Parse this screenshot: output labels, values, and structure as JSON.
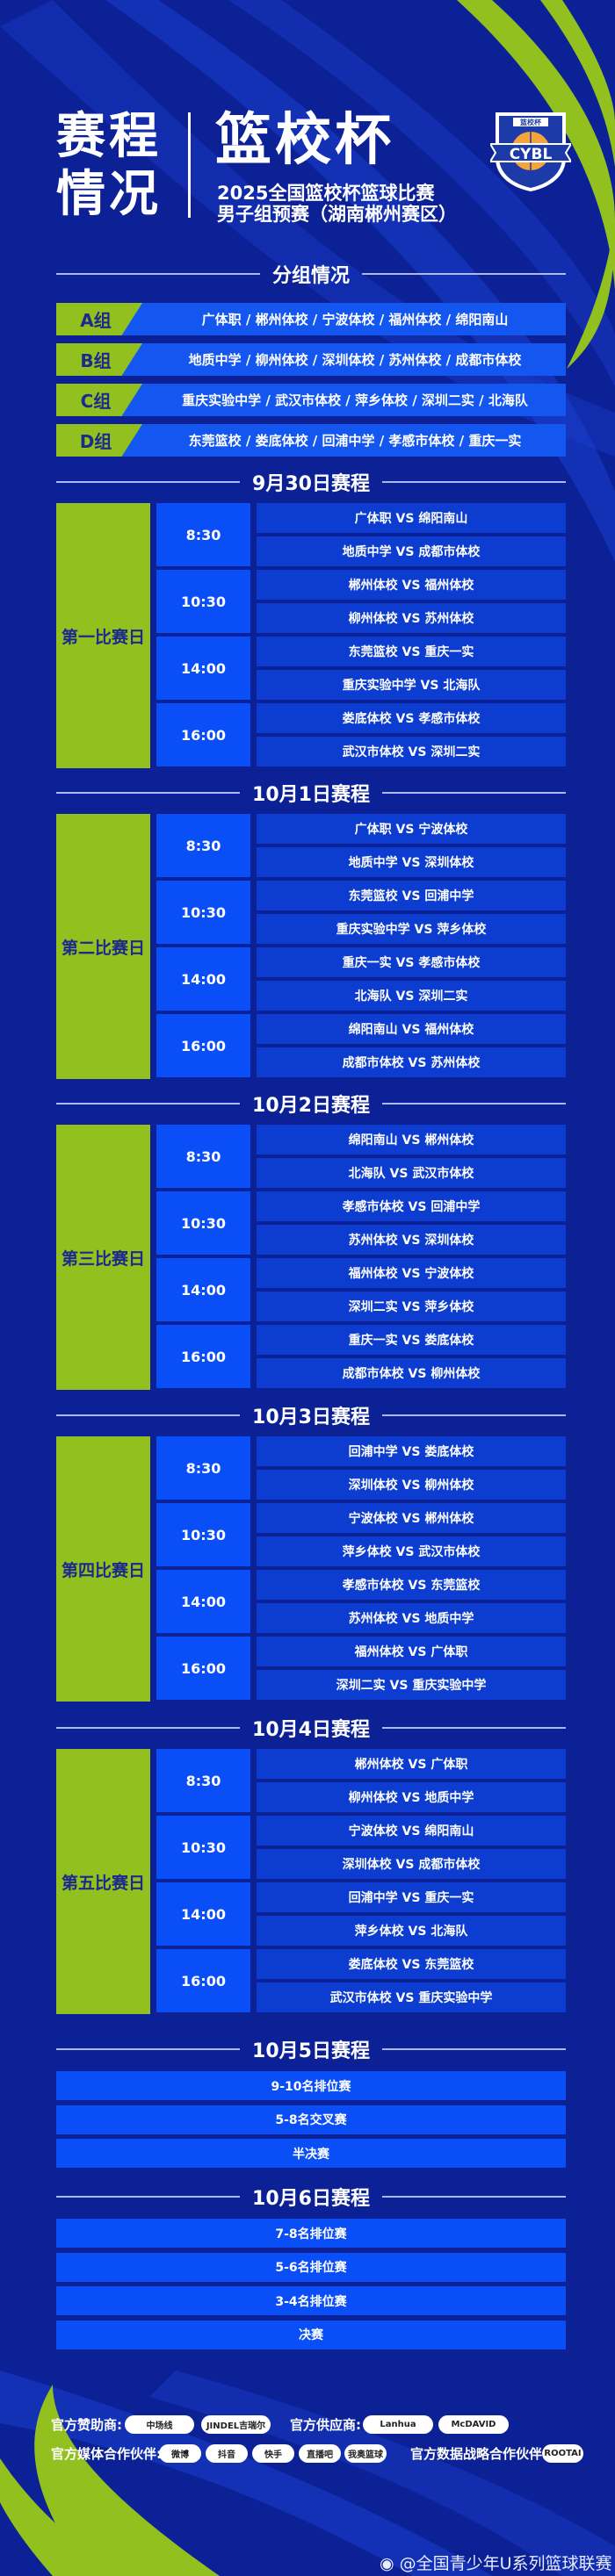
{
  "header": {
    "title_line1": "赛程",
    "title_line2": "情况",
    "cup_name": "篮校杯",
    "subtitle_line1": "2025全国篮校杯篮球比赛",
    "subtitle_line2": "男子组预赛（湖南郴州赛区）",
    "logo_top": "篮校杯",
    "logo_text": "CYBL"
  },
  "groups_section": {
    "title": "分组情况",
    "groups": [
      {
        "label": "A组",
        "teams": "广体职 / 郴州体校 / 宁波体校 / 福州体校 / 绵阳南山"
      },
      {
        "label": "B组",
        "teams": "地质中学 / 柳州体校 / 深圳体校 / 苏州体校 / 成都市体校"
      },
      {
        "label": "C组",
        "teams": "重庆实验中学 / 武汉市体校 / 萍乡体校 / 深圳二实 / 北海队"
      },
      {
        "label": "D组",
        "teams": "东莞篮校 / 娄底体校 / 回浦中学 / 孝感市体校 / 重庆一实"
      }
    ]
  },
  "schedule_days": [
    {
      "heading": "9月30日赛程",
      "day_label": "第一比赛日",
      "slots": [
        {
          "time": "8:30",
          "matches": [
            "广体职 VS 绵阳南山",
            "地质中学 VS 成都市体校"
          ]
        },
        {
          "time": "10:30",
          "matches": [
            "郴州体校 VS 福州体校",
            "柳州体校 VS 苏州体校"
          ]
        },
        {
          "time": "14:00",
          "matches": [
            "东莞篮校 VS 重庆一实",
            "重庆实验中学 VS 北海队"
          ]
        },
        {
          "time": "16:00",
          "matches": [
            "娄底体校 VS 孝感市体校",
            "武汉市体校 VS 深圳二实"
          ]
        }
      ]
    },
    {
      "heading": "10月1日赛程",
      "day_label": "第二比赛日",
      "slots": [
        {
          "time": "8:30",
          "matches": [
            "广体职 VS 宁波体校",
            "地质中学 VS 深圳体校"
          ]
        },
        {
          "time": "10:30",
          "matches": [
            "东莞篮校 VS 回浦中学",
            "重庆实验中学 VS 萍乡体校"
          ]
        },
        {
          "time": "14:00",
          "matches": [
            "重庆一实 VS 孝感市体校",
            "北海队 VS 深圳二实"
          ]
        },
        {
          "time": "16:00",
          "matches": [
            "绵阳南山 VS 福州体校",
            "成都市体校 VS 苏州体校"
          ]
        }
      ]
    },
    {
      "heading": "10月2日赛程",
      "day_label": "第三比赛日",
      "slots": [
        {
          "time": "8:30",
          "matches": [
            "绵阳南山 VS 郴州体校",
            "北海队 VS 武汉市体校"
          ]
        },
        {
          "time": "10:30",
          "matches": [
            "孝感市体校 VS 回浦中学",
            "苏州体校 VS 深圳体校"
          ]
        },
        {
          "time": "14:00",
          "matches": [
            "福州体校 VS 宁波体校",
            "深圳二实 VS 萍乡体校"
          ]
        },
        {
          "time": "16:00",
          "matches": [
            "重庆一实 VS 娄底体校",
            "成都市体校 VS 柳州体校"
          ]
        }
      ]
    },
    {
      "heading": "10月3日赛程",
      "day_label": "第四比赛日",
      "slots": [
        {
          "time": "8:30",
          "matches": [
            "回浦中学 VS 娄底体校",
            "深圳体校 VS 柳州体校"
          ]
        },
        {
          "time": "10:30",
          "matches": [
            "宁波体校 VS 郴州体校",
            "萍乡体校 VS 武汉市体校"
          ]
        },
        {
          "time": "14:00",
          "matches": [
            "孝感市体校 VS 东莞篮校",
            "苏州体校 VS 地质中学"
          ]
        },
        {
          "time": "16:00",
          "matches": [
            "福州体校 VS 广体职",
            "深圳二实 VS 重庆实验中学"
          ]
        }
      ]
    },
    {
      "heading": "10月4日赛程",
      "day_label": "第五比赛日",
      "slots": [
        {
          "time": "8:30",
          "matches": [
            "郴州体校 VS 广体职",
            "柳州体校 VS 地质中学"
          ]
        },
        {
          "time": "10:30",
          "matches": [
            "宁波体校 VS 绵阳南山",
            "深圳体校 VS 成都市体校"
          ]
        },
        {
          "time": "14:00",
          "matches": [
            "回浦中学 VS 重庆一实",
            "萍乡体校 VS 北海队"
          ]
        },
        {
          "time": "16:00",
          "matches": [
            "娄底体校 VS 东莞篮校",
            "武汉市体校 VS 重庆实验中学"
          ]
        }
      ]
    }
  ],
  "final_days": [
    {
      "heading": "10月5日赛程",
      "games": [
        "9-10名排位赛",
        "5-8名交叉赛",
        "半决赛"
      ]
    },
    {
      "heading": "10月6日赛程",
      "games": [
        "7-8名排位赛",
        "5-6名排位赛",
        "3-4名排位赛",
        "决赛"
      ]
    }
  ],
  "sponsors": {
    "sponsor_label": "官方赞助商:",
    "sponsor_logos": [
      "中场线",
      "JINDEL吉瑞尔"
    ],
    "supplier_label": "官方供应商:",
    "supplier_logos": [
      "Lanhua",
      "McDAVID"
    ],
    "media_label": "官方媒体合作伙伴:",
    "media_logos": [
      "微博",
      "抖音",
      "快手",
      "直播吧",
      "我奥篮球"
    ],
    "data_label": "官方数据战略合作伙伴:",
    "data_logos": [
      "ROOTAI"
    ]
  },
  "watermark": "@全国青少年U系列篮球联赛",
  "colors": {
    "background": "#0c2196",
    "green": "#92c01e",
    "time_blue": "#0a4ef8",
    "match_blue": "#0d3dd0",
    "label_text": "#1c2a8c"
  }
}
